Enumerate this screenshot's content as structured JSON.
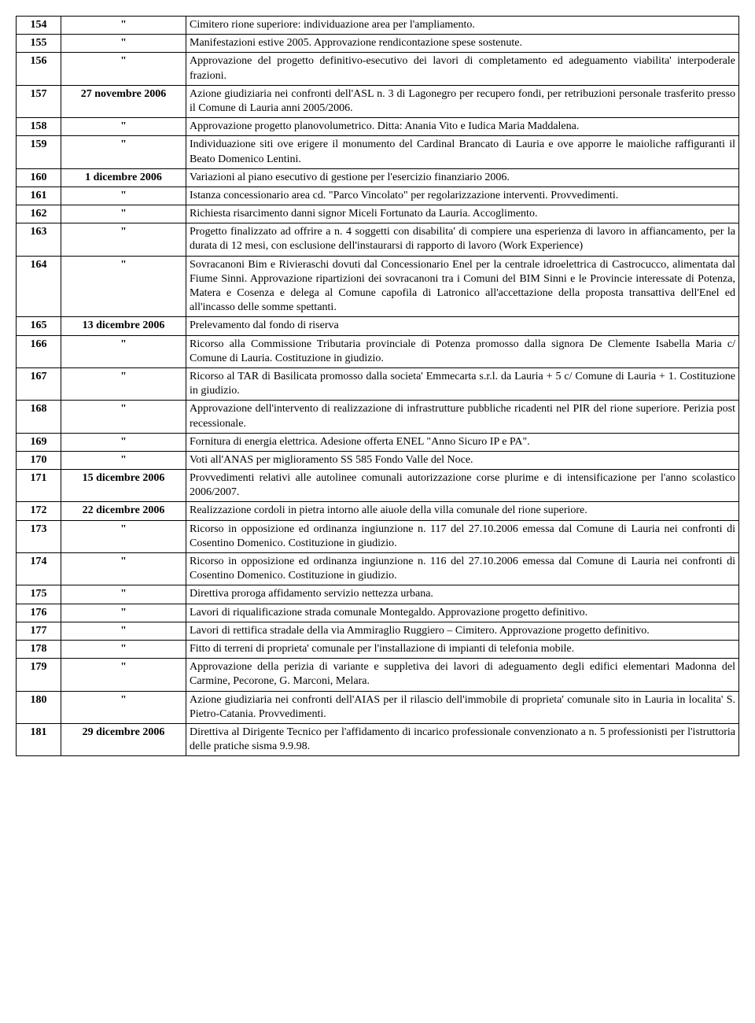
{
  "table": {
    "rows": [
      {
        "num": "154",
        "date": "\"",
        "desc": "Cimitero rione superiore: individuazione area per l'ampliamento."
      },
      {
        "num": "155",
        "date": "\"",
        "desc": "Manifestazioni estive 2005. Approvazione rendicontazione spese sostenute."
      },
      {
        "num": "156",
        "date": "\"",
        "desc": "Approvazione del progetto definitivo-esecutivo dei lavori di completamento ed adeguamento viabilita' interpoderale frazioni."
      },
      {
        "num": "157",
        "date": "27 novembre 2006",
        "desc": "Azione giudiziaria nei confronti dell'ASL n. 3 di Lagonegro per recupero fondi, per retribuzioni personale trasferito presso il Comune di Lauria anni 2005/2006."
      },
      {
        "num": "158",
        "date": "\"",
        "desc": "Approvazione progetto planovolumetrico.\nDitta: Anania Vito e Iudica Maria Maddalena."
      },
      {
        "num": "159",
        "date": "\"",
        "desc": "Individuazione siti ove erigere il monumento del Cardinal Brancato di Lauria e ove apporre le maioliche raffiguranti il Beato Domenico Lentini."
      },
      {
        "num": "160",
        "date": "1 dicembre 2006",
        "desc": "Variazioni al piano esecutivo di gestione per l'esercizio finanziario 2006."
      },
      {
        "num": "161",
        "date": "\"",
        "desc": "Istanza concessionario area cd. \"Parco Vincolato\" per regolarizzazione interventi. Provvedimenti."
      },
      {
        "num": "162",
        "date": "\"",
        "desc": "Richiesta risarcimento danni signor Miceli Fortunato da Lauria. Accoglimento."
      },
      {
        "num": "163",
        "date": "\"",
        "desc": "Progetto finalizzato ad offrire a n. 4 soggetti con disabilita' di compiere una esperienza di lavoro in affiancamento, per la durata di 12 mesi, con esclusione dell'instaurarsi di rapporto di lavoro (Work Experience)"
      },
      {
        "num": "164",
        "date": "\"",
        "desc": "Sovracanoni Bim e Rivieraschi dovuti dal Concessionario Enel per la centrale idroelettrica di Castrocucco, alimentata dal Fiume Sinni. Approvazione ripartizioni dei sovracanoni tra i Comuni del BIM Sinni e le Provincie interessate di Potenza, Matera e Cosenza e delega al Comune capofila di Latronico all'accettazione della proposta transattiva dell'Enel ed all'incasso delle somme spettanti."
      },
      {
        "num": "165",
        "date": "13 dicembre 2006",
        "desc": "Prelevamento dal fondo di riserva"
      },
      {
        "num": "166",
        "date": "\"",
        "desc": "Ricorso alla Commissione Tributaria provinciale di Potenza promosso dalla signora De Clemente Isabella Maria c/ Comune di Lauria. Costituzione in giudizio."
      },
      {
        "num": "167",
        "date": "\"",
        "desc": "Ricorso al TAR di Basilicata promosso dalla societa' Emmecarta s.r.l. da Lauria + 5 c/ Comune di Lauria + 1. Costituzione in giudizio."
      },
      {
        "num": "168",
        "date": "\"",
        "desc": "Approvazione dell'intervento di realizzazione di infrastrutture pubbliche ricadenti nel PIR del rione superiore. Perizia post recessionale."
      },
      {
        "num": "169",
        "date": "\"",
        "desc": "Fornitura di energia elettrica. Adesione offerta ENEL \"Anno Sicuro IP e PA\"."
      },
      {
        "num": "170",
        "date": "\"",
        "desc": "Voti all'ANAS per miglioramento SS 585 Fondo Valle del Noce."
      },
      {
        "num": "171",
        "date": "15 dicembre 2006",
        "desc": "Provvedimenti relativi alle autolinee comunali autorizzazione corse plurime e di intensificazione per l'anno scolastico 2006/2007."
      },
      {
        "num": "172",
        "date": "22 dicembre 2006",
        "desc": "Realizzazione cordoli in pietra intorno alle aiuole della villa comunale del rione superiore."
      },
      {
        "num": "173",
        "date": "\"",
        "desc": "Ricorso in opposizione ed ordinanza ingiunzione n. 117 del 27.10.2006 emessa dal Comune di Lauria nei confronti di Cosentino Domenico. Costituzione in giudizio."
      },
      {
        "num": "174",
        "date": "\"",
        "desc": "Ricorso in opposizione ed ordinanza ingiunzione n. 116 del 27.10.2006 emessa dal Comune di Lauria nei confronti di Cosentino Domenico. Costituzione in giudizio."
      },
      {
        "num": "175",
        "date": "\"",
        "desc": "Direttiva proroga affidamento servizio nettezza urbana."
      },
      {
        "num": "176",
        "date": "\"",
        "desc": "Lavori di riqualificazione strada comunale Montegaldo. Approvazione progetto definitivo."
      },
      {
        "num": "177",
        "date": "\"",
        "desc": "Lavori di rettifica stradale della via Ammiraglio Ruggiero – Cimitero. Approvazione progetto definitivo."
      },
      {
        "num": "178",
        "date": "\"",
        "desc": "Fitto di terreni di proprieta' comunale per l'installazione di impianti di telefonia mobile."
      },
      {
        "num": "179",
        "date": "\"",
        "desc": "Approvazione della perizia di variante e suppletiva dei lavori di adeguamento degli edifici elementari Madonna del Carmine, Pecorone, G. Marconi, Melara."
      },
      {
        "num": "180",
        "date": "\"",
        "desc": "Azione giudiziaria nei confronti dell'AIAS per il rilascio dell'immobile di proprieta' comunale sito in Lauria in localita' S. Pietro-Catania. Provvedimenti."
      },
      {
        "num": "181",
        "date": "29 dicembre 2006",
        "desc": "Direttiva al Dirigente Tecnico per l'affidamento di incarico professionale convenzionato a n. 5 professionisti per l'istruttoria delle pratiche sisma 9.9.98."
      }
    ]
  }
}
